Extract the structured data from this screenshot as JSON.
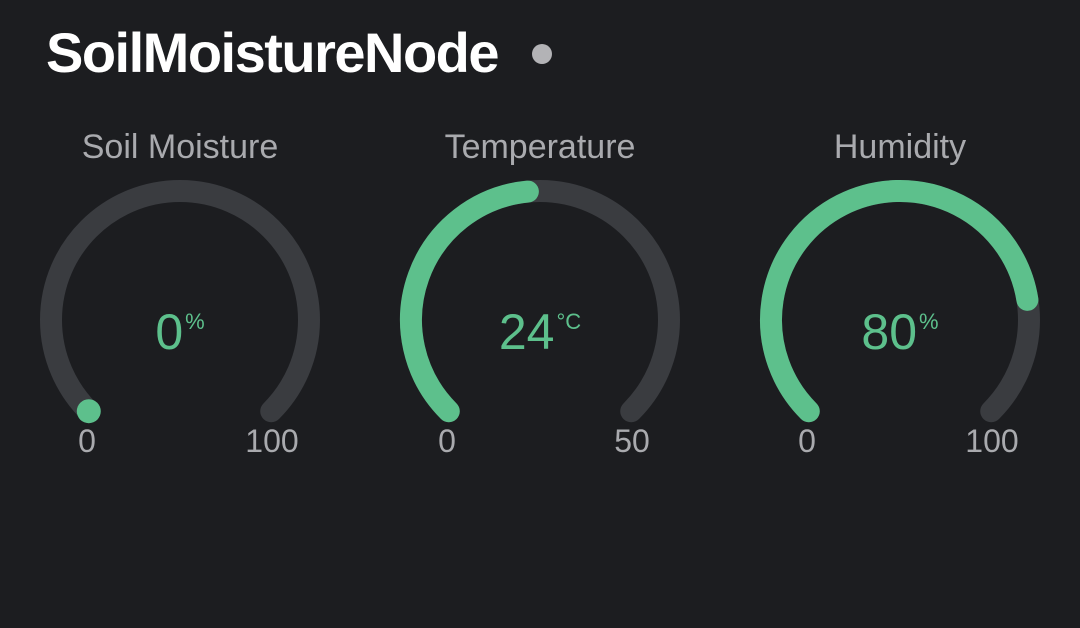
{
  "header": {
    "device_name": "SoilMoistureNode",
    "status_icon": "status-dot-icon",
    "status_color": "#b3b3b6"
  },
  "colors": {
    "background": "#1c1d20",
    "track": "#3a3c40",
    "fill": "#5dc08c",
    "label": "#a9aaae"
  },
  "gauges": [
    {
      "title": "Soil Moisture",
      "value": 0,
      "display": "0",
      "unit": "%",
      "min": 0,
      "max": 100,
      "min_label": "0",
      "max_label": "100"
    },
    {
      "title": "Temperature",
      "value": 24,
      "display": "24",
      "unit": "°C",
      "min": 0,
      "max": 50,
      "min_label": "0",
      "max_label": "50"
    },
    {
      "title": "Humidity",
      "value": 80,
      "display": "80",
      "unit": "%",
      "min": 0,
      "max": 100,
      "min_label": "0",
      "max_label": "100"
    }
  ]
}
